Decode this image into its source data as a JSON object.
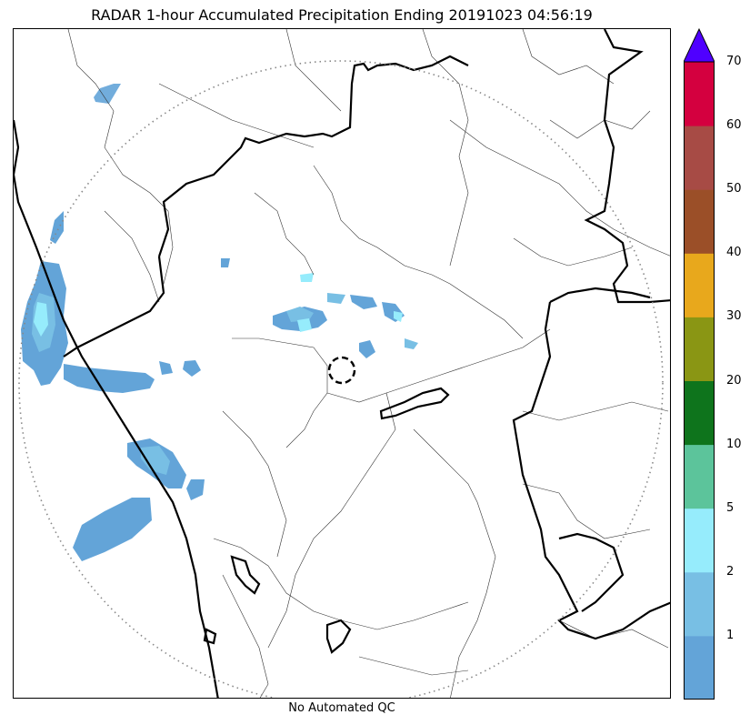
{
  "title": "RADAR 1-hour Accumulated Precipitation Ending 20191023 04:56:19",
  "footer": "No Automated QC",
  "colorbar": {
    "levels": [
      "1",
      "2",
      "5",
      "10",
      "20",
      "30",
      "40",
      "50",
      "60",
      "70"
    ],
    "colors": [
      "#63a4d8",
      "#78bfe4",
      "#96ecfc",
      "#5cc49b",
      "#0e741c",
      "#8a9614",
      "#e8a81c",
      "#9b4f28",
      "#a74b45",
      "#d4003f"
    ],
    "extend_color": "#4f00ff"
  },
  "map": {
    "range_ring_color": "#888888",
    "precip_colors": {
      "light": "#63a4d8",
      "medium": "#78bfe4",
      "heavy": "#96ecfc"
    }
  }
}
